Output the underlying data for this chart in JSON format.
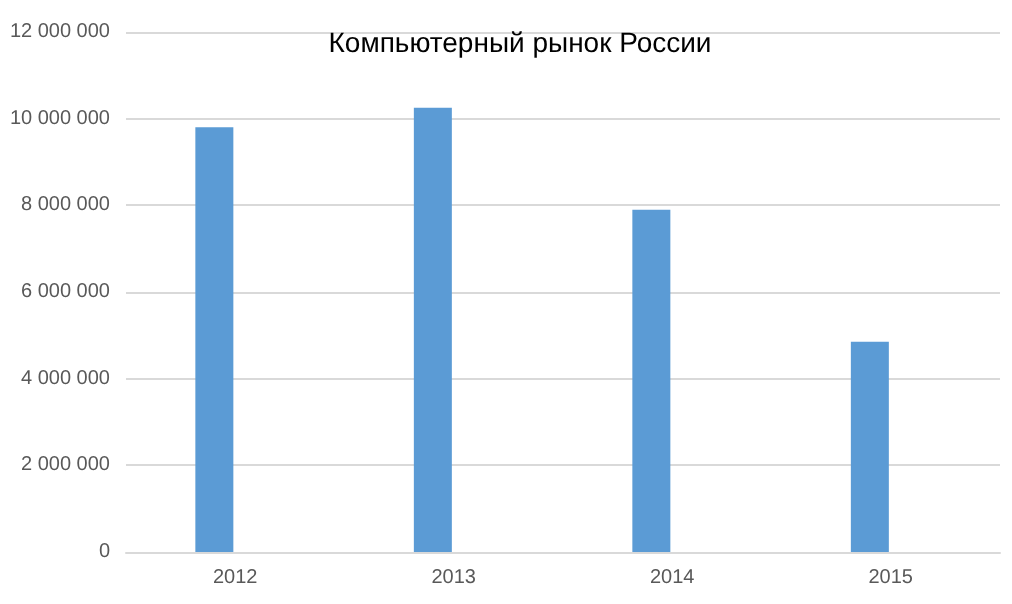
{
  "chart_data": {
    "type": "bar",
    "title": "Компьютерный рынок России",
    "categories": [
      "2012",
      "2013",
      "2014",
      "2015"
    ],
    "series": [
      {
        "color": "#5b9bd5",
        "values": [
          9800000,
          10250000,
          7900000,
          4850000
        ]
      }
    ],
    "ylim": [
      0,
      12000000
    ],
    "yticks": [
      0,
      2000000,
      4000000,
      6000000,
      8000000,
      10000000,
      12000000
    ],
    "grid": "y"
  }
}
